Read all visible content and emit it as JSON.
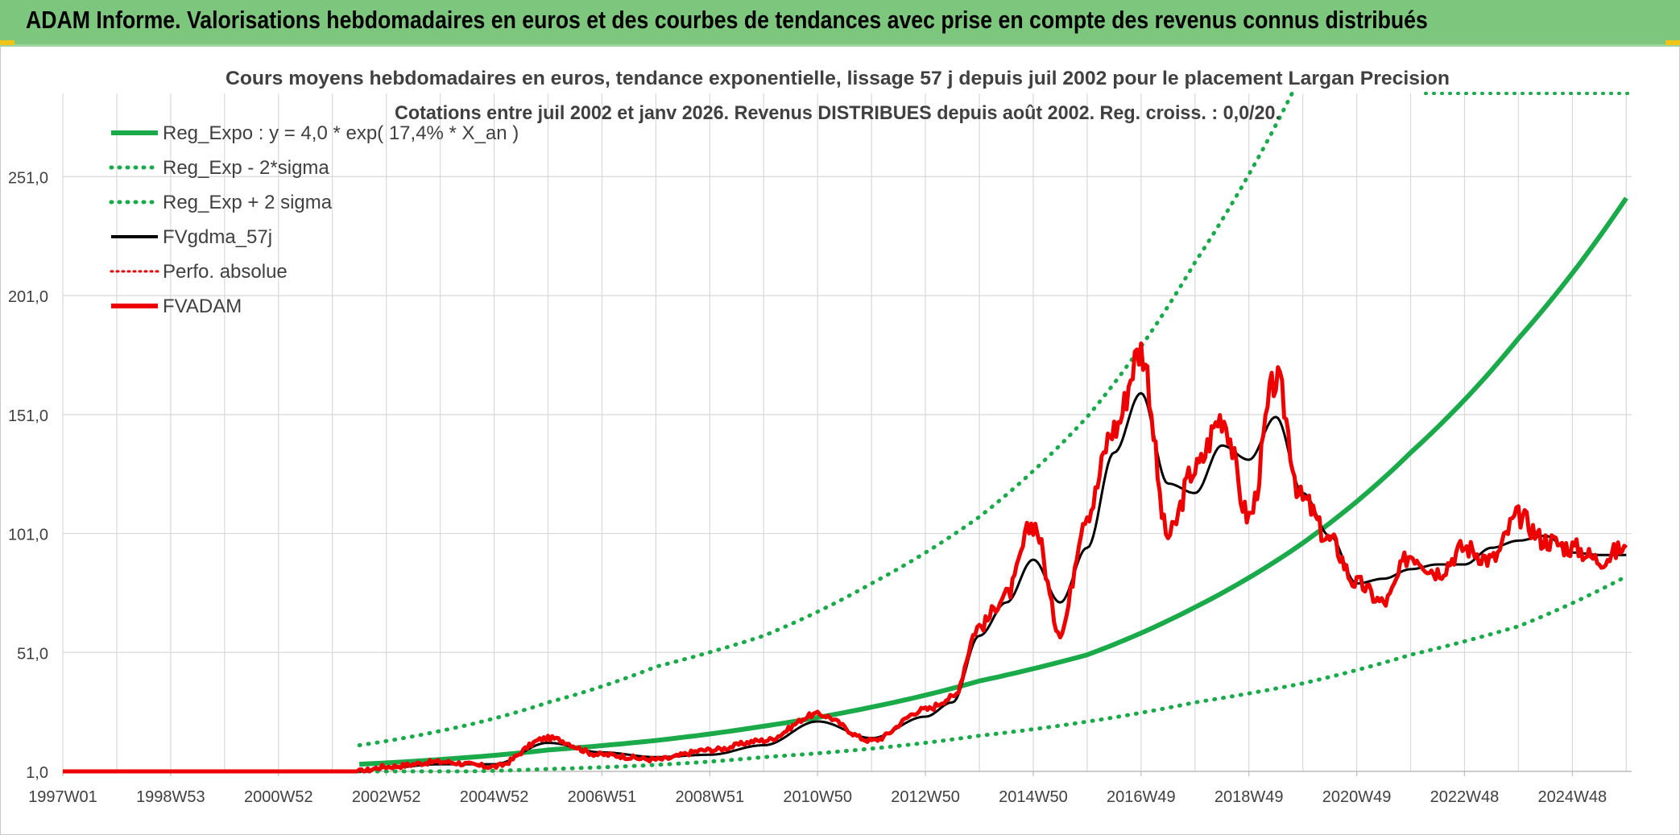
{
  "header": {
    "title": "ADAM Informe. Valorisations hebdomadaires en euros et des courbes de tendances avec prise en compte des revenus connus distribués"
  },
  "colors": {
    "header_bg": "#7dc67d",
    "reg_expo": "#1aaa4a",
    "sigma": "#1aaa4a",
    "fvgdma": "#000000",
    "perfo": "#e00000",
    "fvadam": "#ee0000",
    "grid": "#d9d9d9"
  },
  "chart_data": {
    "type": "line",
    "title": "Cours moyens hebdomadaires en euros, tendance exponentielle, lissage 57 j depuis juil 2002 pour le placement Largan Precision",
    "subtitle": "Cotations entre juil 2002 et janv 2026. Revenus DISTRIBUES depuis août 2002. Reg. croiss. : 0,0/20.",
    "xlabel": "",
    "ylabel": "",
    "x_range": [
      1997.0,
      2026.1
    ],
    "ylim": [
      1,
      286
    ],
    "y_ticks": [
      1,
      51,
      101,
      151,
      201,
      251
    ],
    "y_tick_labels": [
      "1,0",
      "51,0",
      "101,0",
      "151,0",
      "201,0",
      "251,0"
    ],
    "x_ticks": [
      1997.0,
      1999.0,
      2001.0,
      2003.0,
      2005.0,
      2007.0,
      2009.0,
      2011.0,
      2013.0,
      2015.0,
      2017.0,
      2019.0,
      2021.0,
      2023.0,
      2025.0
    ],
    "x_tick_labels": [
      "1997W01",
      "1998W53",
      "2000W52",
      "2002W52",
      "2004W52",
      "2006W51",
      "2008W51",
      "2010W50",
      "2012W50",
      "2014W50",
      "2016W49",
      "2018W49",
      "2020W49",
      "2022W48",
      "2024W48"
    ],
    "grid": true,
    "legend_position": "top-left",
    "legend": [
      {
        "key": "reg_expo",
        "label": "Reg_Expo : y = 4,0 * exp( 17,4% *  X_an )"
      },
      {
        "key": "reg_minus",
        "label": "Reg_Exp - 2*sigma"
      },
      {
        "key": "reg_plus",
        "label": "Reg_Exp + 2 sigma"
      },
      {
        "key": "fvgdma",
        "label": "FVgdma_57j"
      },
      {
        "key": "perfo",
        "label": "Perfo. absolue"
      },
      {
        "key": "fvadam",
        "label": "FVADAM"
      }
    ],
    "series": [
      {
        "name": "Reg_Expo",
        "style": "solid-thick",
        "x": [
          2002.5,
          2004,
          2006,
          2008,
          2010,
          2012,
          2014,
          2016,
          2018,
          2020,
          2022,
          2024,
          2026
        ],
        "values": [
          4,
          6,
          10,
          14,
          20,
          28,
          39,
          50,
          70,
          97,
          135,
          183,
          242
        ]
      },
      {
        "name": "Reg_Exp - 2*sigma",
        "style": "dotted",
        "x": [
          2002.5,
          2006,
          2010,
          2014,
          2018,
          2020,
          2022,
          2024,
          2026
        ],
        "values": [
          0.4,
          2,
          7,
          16,
          30,
          38,
          50,
          62,
          83
        ]
      },
      {
        "name": "Reg_Exp + 2 sigma",
        "style": "dotted",
        "x": [
          2002.5,
          2004,
          2006,
          2008,
          2010,
          2012,
          2014,
          2016,
          2018,
          2019.8
        ],
        "values": [
          12,
          18,
          30,
          45,
          58,
          80,
          108,
          150,
          215,
          286
        ]
      },
      {
        "name": "FVgdma_57j",
        "style": "solid",
        "x": [
          1997.0,
          2002.5,
          2003,
          2004,
          2005,
          2006,
          2007,
          2008,
          2009,
          2010,
          2011,
          2012,
          2013,
          2013.5,
          2014,
          2014.5,
          2015,
          2015.5,
          2016,
          2016.5,
          2017,
          2017.5,
          2018,
          2018.5,
          2019,
          2019.5,
          2020,
          2020.5,
          2021,
          2021.5,
          2022,
          2022.5,
          2023,
          2023.5,
          2024,
          2024.5,
          2025,
          2025.5,
          2026
        ],
        "values": [
          1,
          1,
          2.5,
          4,
          4,
          13,
          9,
          7,
          8,
          12,
          22,
          15,
          24,
          30,
          58,
          72,
          90,
          72,
          95,
          135,
          160,
          122,
          118,
          138,
          132,
          150,
          118,
          100,
          80,
          82,
          86,
          88,
          88,
          95,
          98,
          100,
          93,
          92,
          92
        ]
      },
      {
        "name": "Perfo. absolue",
        "style": "dotted-thin",
        "x": [
          1997.0,
          2002.5
        ],
        "values": [
          1,
          1
        ]
      },
      {
        "name": "FVADAM",
        "style": "solid-thick",
        "x": [
          1997.0,
          2002.5,
          2003,
          2004,
          2005,
          2006,
          2007,
          2008,
          2009,
          2010,
          2011,
          2012,
          2013,
          2013.5,
          2014,
          2014.5,
          2015,
          2015.5,
          2016,
          2016.5,
          2017,
          2017.5,
          2018,
          2018.5,
          2019,
          2019.5,
          2020,
          2020.5,
          2021,
          2021.5,
          2022,
          2022.5,
          2023,
          2023.5,
          2024,
          2024.5,
          2025,
          2025.5,
          2026
        ],
        "values": [
          1,
          1,
          3,
          5,
          3,
          15,
          8,
          6,
          10,
          14,
          25,
          14,
          27,
          32,
          62,
          75,
          105,
          60,
          110,
          145,
          178,
          100,
          128,
          150,
          108,
          165,
          115,
          98,
          80,
          72,
          92,
          85,
          95,
          90,
          108,
          98,
          95,
          90,
          95
        ]
      }
    ]
  }
}
